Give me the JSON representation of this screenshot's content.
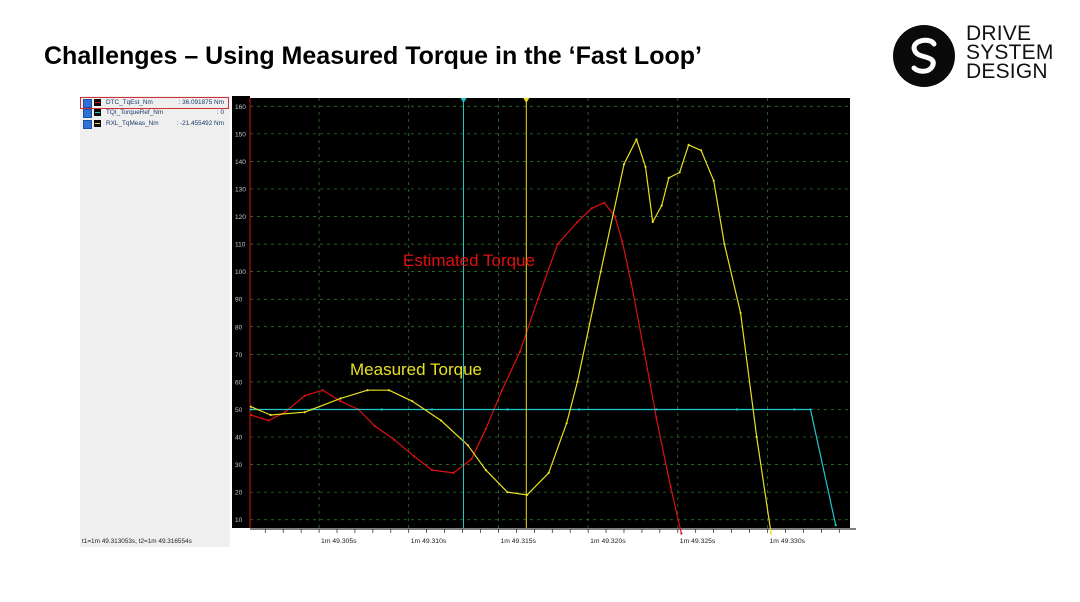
{
  "slide": {
    "title": "Challenges – Using Measured Torque in the ‘Fast Loop’"
  },
  "logo": {
    "icon": "ds-swoosh-logo-icon",
    "lines": [
      "DRIVE",
      "SYSTEM",
      "DESIGN"
    ]
  },
  "legend": {
    "items": [
      {
        "name": "DTC_TqEst_Nm",
        "value": ": 36.091875 Nm",
        "color": "#e01010"
      },
      {
        "name": "TQI_TorqueRef_Nm",
        "value": ": 0",
        "color": "#20c8d0"
      },
      {
        "name": "RXL_TqMeas_Nm",
        "value": ": -21.455492 Nm",
        "color": "#e8e020"
      }
    ],
    "cursor_readout": "t1=1m 49.313053s, t2=1m 49.316554s"
  },
  "annotations": {
    "estimated": "Estimated Torque",
    "measured": "Measured Torque"
  },
  "chart_data": {
    "type": "line",
    "background": "#000000",
    "grid": true,
    "x_tick_labels": [
      "1m 49.305s",
      "1m 49.310s",
      "1m 49.315s",
      "1m 49.320s",
      "1m 49.325s",
      "1m 49.330s"
    ],
    "x_tick_values": [
      49.305,
      49.31,
      49.315,
      49.32,
      49.325,
      49.33
    ],
    "xlim": [
      49.30115,
      49.3346
    ],
    "y_tick_labels": [
      "10",
      "20",
      "30",
      "40",
      "50",
      "60",
      "70",
      "80",
      "90",
      "100",
      "110",
      "120",
      "130",
      "140",
      "150",
      "160"
    ],
    "ylim": [
      7,
      163
    ],
    "cursors": [
      {
        "name": "t1",
        "x": 49.313053,
        "color": "#20c8d0"
      },
      {
        "name": "t2",
        "x": 49.316554,
        "color": "#e8e020"
      }
    ],
    "series": [
      {
        "name": "DTC_TqEst_Nm",
        "color": "#e01010",
        "x": [
          49.3012,
          49.3022,
          49.3031,
          49.3042,
          49.3052,
          49.3062,
          49.3072,
          49.3081,
          49.3092,
          49.3103,
          49.3113,
          49.3125,
          49.3135,
          49.3143,
          49.3152,
          49.3162,
          49.3172,
          49.3183,
          49.3194,
          49.3202,
          49.3209,
          49.3215,
          49.3219,
          49.3224,
          49.3231,
          49.3238,
          49.3246,
          49.3252
        ],
        "y": [
          48,
          46,
          49,
          55,
          57,
          53,
          50,
          44,
          39,
          33,
          28,
          27,
          32,
          43,
          57,
          71,
          90,
          110,
          118,
          123,
          125,
          120,
          111,
          96,
          72,
          47,
          22,
          5
        ]
      },
      {
        "name": "TQI_TorqueRef_Nm",
        "color": "#20c8d0",
        "x": [
          49.3012,
          49.3046,
          49.3085,
          49.3113,
          49.3155,
          49.3195,
          49.3238,
          49.3283,
          49.3315,
          49.3324,
          49.3338
        ],
        "y": [
          50,
          50,
          50,
          50,
          50,
          50,
          50,
          50,
          50,
          50,
          8
        ]
      },
      {
        "name": "RXL_TqMeas_Nm",
        "color": "#e8e020",
        "x": [
          49.3012,
          49.3023,
          49.3042,
          49.3062,
          49.3077,
          49.3089,
          49.3102,
          49.3118,
          49.3133,
          49.3143,
          49.3155,
          49.3166,
          49.3178,
          49.3188,
          49.3194,
          49.3207,
          49.322,
          49.3227,
          49.3232,
          49.3236,
          49.3241,
          49.3245,
          49.3251,
          49.3256,
          49.3263,
          49.327,
          49.3276,
          49.3285,
          49.3294,
          49.3302
        ],
        "y": [
          51,
          48,
          49,
          54,
          57,
          57,
          53,
          46,
          37,
          28,
          20,
          19,
          27,
          45,
          60,
          100,
          139,
          148,
          138,
          118,
          124,
          134,
          136,
          146,
          144,
          133,
          110,
          85,
          40,
          5
        ]
      }
    ]
  }
}
